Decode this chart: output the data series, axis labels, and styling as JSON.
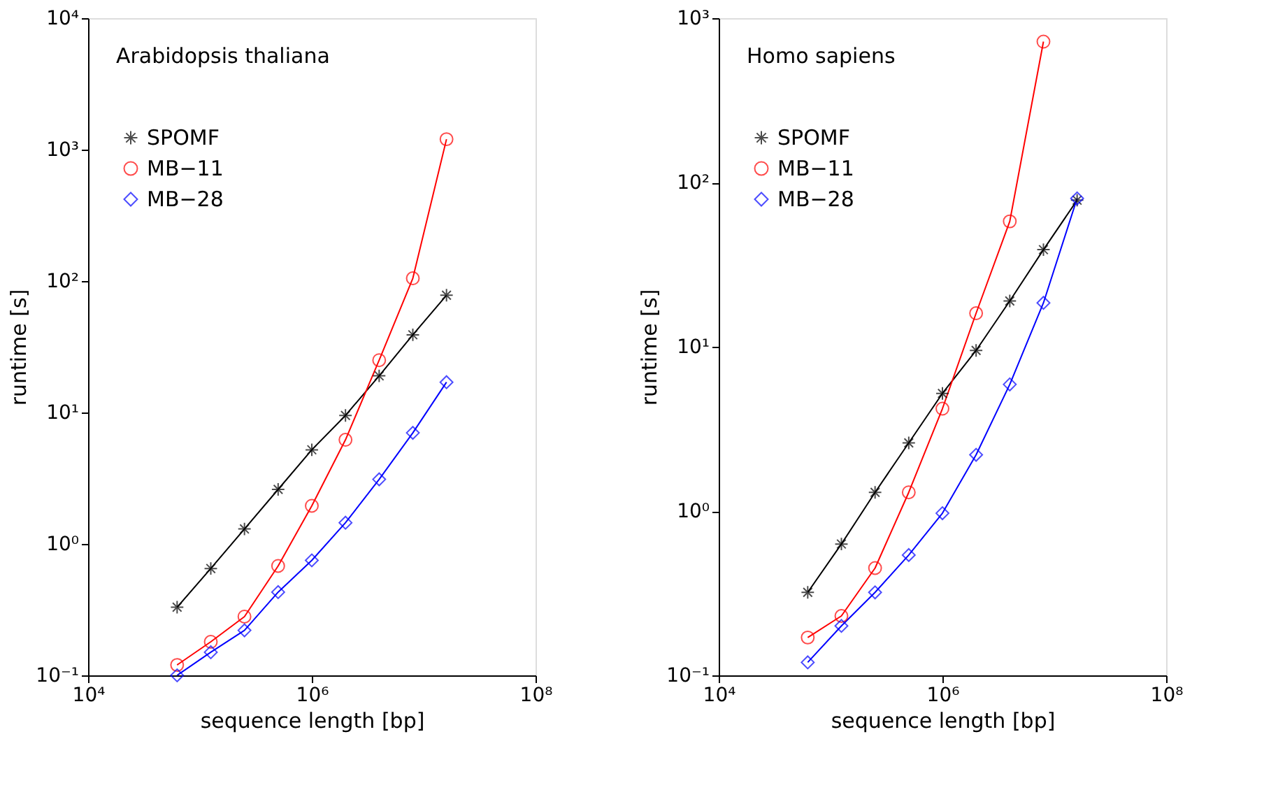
{
  "chart_data": [
    {
      "type": "line",
      "annotations": [
        "Arabidopsis thaliana"
      ],
      "xlabel": "sequence length [bp]",
      "ylabel": "runtime [s]",
      "log": "xy",
      "grid": false,
      "legend": "top left",
      "x": [
        62500,
        125000,
        250000,
        500000,
        1000000,
        2000000,
        4000000,
        8000000,
        16000000
      ],
      "xlim": [
        10000,
        100000000
      ],
      "xticks": [
        {
          "value": 10000,
          "label": "10⁴"
        },
        {
          "value": 1000000,
          "label": "10⁶"
        },
        {
          "value": 100000000,
          "label": "10⁸"
        }
      ],
      "ylim": [
        0.1,
        10000
      ],
      "yticks": [
        {
          "value": 0.1,
          "label": "10⁻¹"
        },
        {
          "value": 1,
          "label": "10⁰"
        },
        {
          "value": 10,
          "label": "10¹"
        },
        {
          "value": 100,
          "label": "10²"
        },
        {
          "value": 1000,
          "label": "10³"
        },
        {
          "value": 10000,
          "label": "10⁴"
        }
      ],
      "series": [
        {
          "name": "SPOMF",
          "color": "#000000",
          "marker": "cross",
          "values": [
            0.33,
            0.65,
            1.3,
            2.6,
            5.2,
            9.5,
            19,
            39,
            78
          ]
        },
        {
          "name": "MB−11",
          "color": "#ff0000",
          "marker": "circle",
          "values": [
            0.12,
            0.18,
            0.28,
            0.68,
            1.95,
            6.2,
            25,
            105,
            1200
          ]
        },
        {
          "name": "MB−28",
          "color": "#0000ff",
          "marker": "diamond",
          "values": [
            0.1,
            0.15,
            0.22,
            0.43,
            0.75,
            1.45,
            3.1,
            7,
            17
          ]
        }
      ]
    },
    {
      "type": "line",
      "annotations": [
        "Homo sapiens"
      ],
      "xlabel": "sequence length [bp]",
      "ylabel": "runtime [s]",
      "log": "xy",
      "grid": false,
      "legend": "top left",
      "x": [
        62500,
        125000,
        250000,
        500000,
        1000000,
        2000000,
        4000000,
        8000000,
        16000000
      ],
      "xlim": [
        10000,
        100000000
      ],
      "xticks": [
        {
          "value": 10000,
          "label": "10⁴"
        },
        {
          "value": 1000000,
          "label": "10⁶"
        },
        {
          "value": 100000000,
          "label": "10⁸"
        }
      ],
      "ylim": [
        0.1,
        1000
      ],
      "yticks": [
        {
          "value": 0.1,
          "label": "10⁻¹"
        },
        {
          "value": 1,
          "label": "10⁰"
        },
        {
          "value": 10,
          "label": "10¹"
        },
        {
          "value": 100,
          "label": "10²"
        },
        {
          "value": 1000,
          "label": "10³"
        }
      ],
      "series": [
        {
          "name": "SPOMF",
          "color": "#000000",
          "marker": "cross",
          "values": [
            0.32,
            0.63,
            1.3,
            2.6,
            5.2,
            9.5,
            19,
            39,
            78
          ]
        },
        {
          "name": "MB−11",
          "color": "#ff0000",
          "marker": "circle",
          "values": [
            0.17,
            0.23,
            0.45,
            1.3,
            4.2,
            16,
            58,
            720,
            null
          ]
        },
        {
          "name": "MB−28",
          "color": "#0000ff",
          "marker": "diamond",
          "values": [
            0.12,
            0.2,
            0.32,
            0.54,
            0.97,
            2.2,
            5.9,
            18.5,
            80
          ]
        }
      ]
    }
  ]
}
